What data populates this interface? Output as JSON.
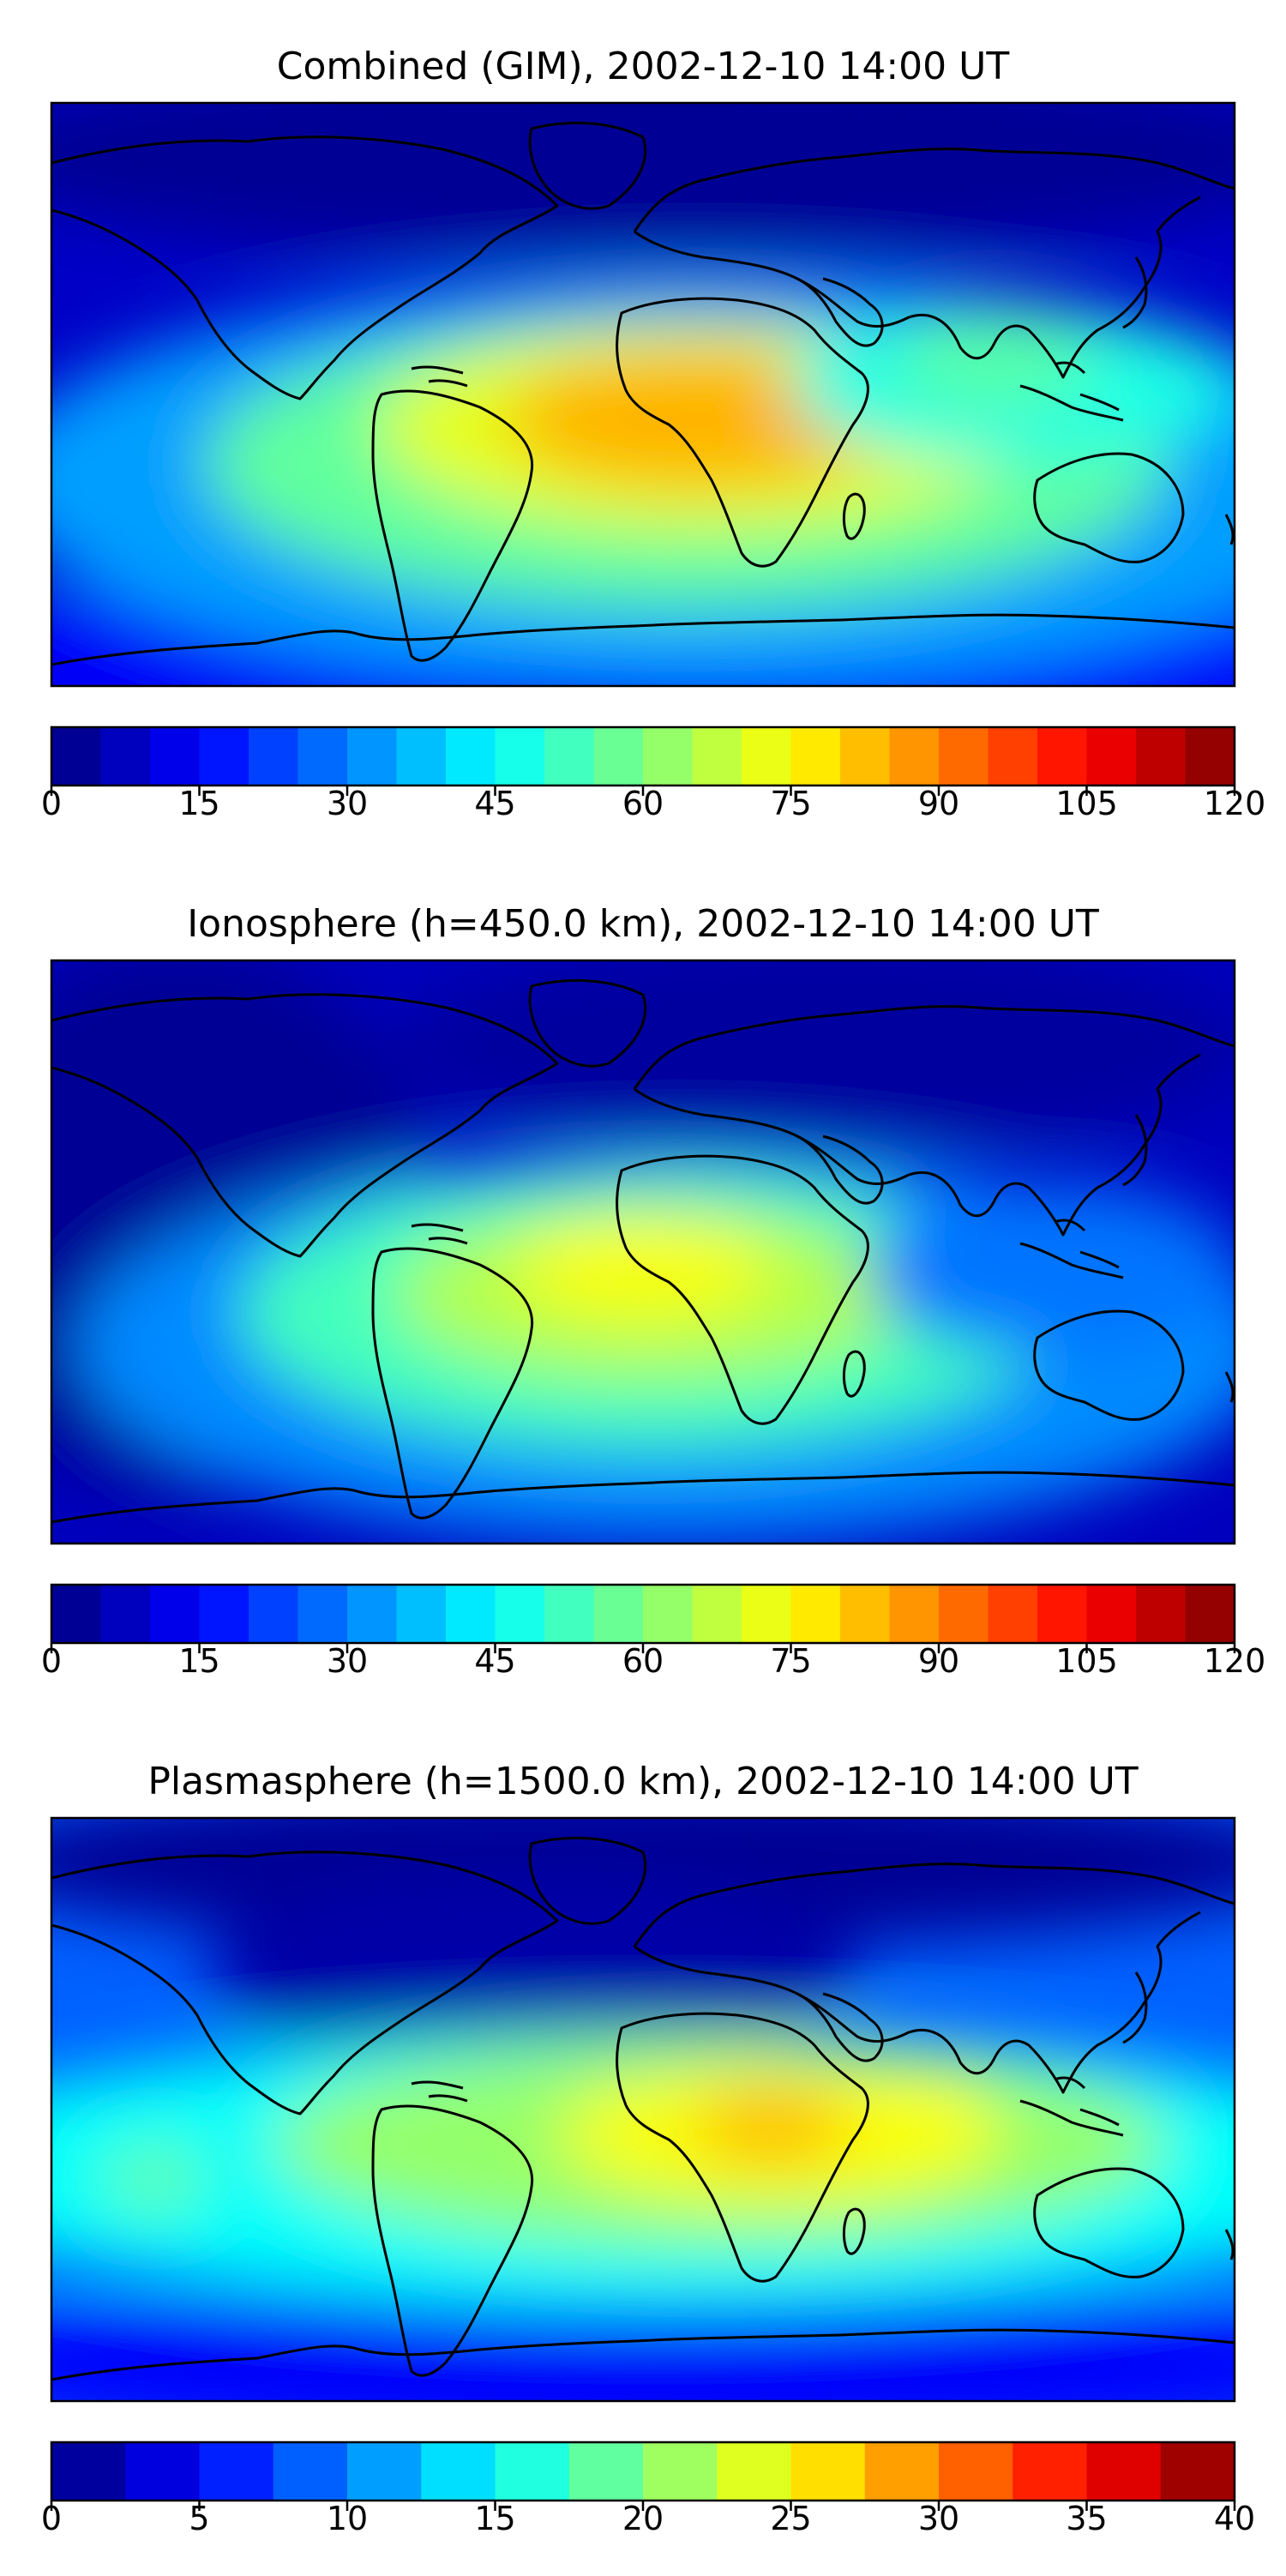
{
  "chart_data": [
    {
      "type": "heatmap",
      "title": "Combined (GIM), 2002-12-10 14:00 UT",
      "colorbar": {
        "min": 0,
        "max": 120,
        "levels": 24,
        "ticks": [
          0,
          15,
          30,
          45,
          60,
          75,
          90,
          105,
          120
        ],
        "tick_labels": [
          "0",
          "15",
          "30",
          "45",
          "60",
          "75",
          "90",
          "105",
          "120"
        ]
      },
      "peak_region": "Africa / tropical Atlantic",
      "approx_peak_value": 90
    },
    {
      "type": "heatmap",
      "title": "Ionosphere  (h=450.0 km), 2002-12-10 14:00 UT",
      "colorbar": {
        "min": 0,
        "max": 120,
        "levels": 24,
        "ticks": [
          0,
          15,
          30,
          45,
          60,
          75,
          90,
          105,
          120
        ],
        "tick_labels": [
          "0",
          "15",
          "30",
          "45",
          "60",
          "75",
          "90",
          "105",
          "120"
        ]
      },
      "peak_region": "Africa / tropical Atlantic",
      "approx_peak_value": 75
    },
    {
      "type": "heatmap",
      "title": "Plasmasphere (h=1500.0 km), 2002-12-10 14:00 UT",
      "colorbar": {
        "min": 0,
        "max": 40,
        "levels": 16,
        "ticks": [
          0,
          5,
          10,
          15,
          20,
          25,
          30,
          35,
          40
        ],
        "tick_labels": [
          "0",
          "5",
          "10",
          "15",
          "20",
          "25",
          "30",
          "35",
          "40"
        ]
      },
      "peak_region": "East Africa / Indian Ocean",
      "approx_peak_value": 27
    }
  ],
  "colormap": "jet"
}
